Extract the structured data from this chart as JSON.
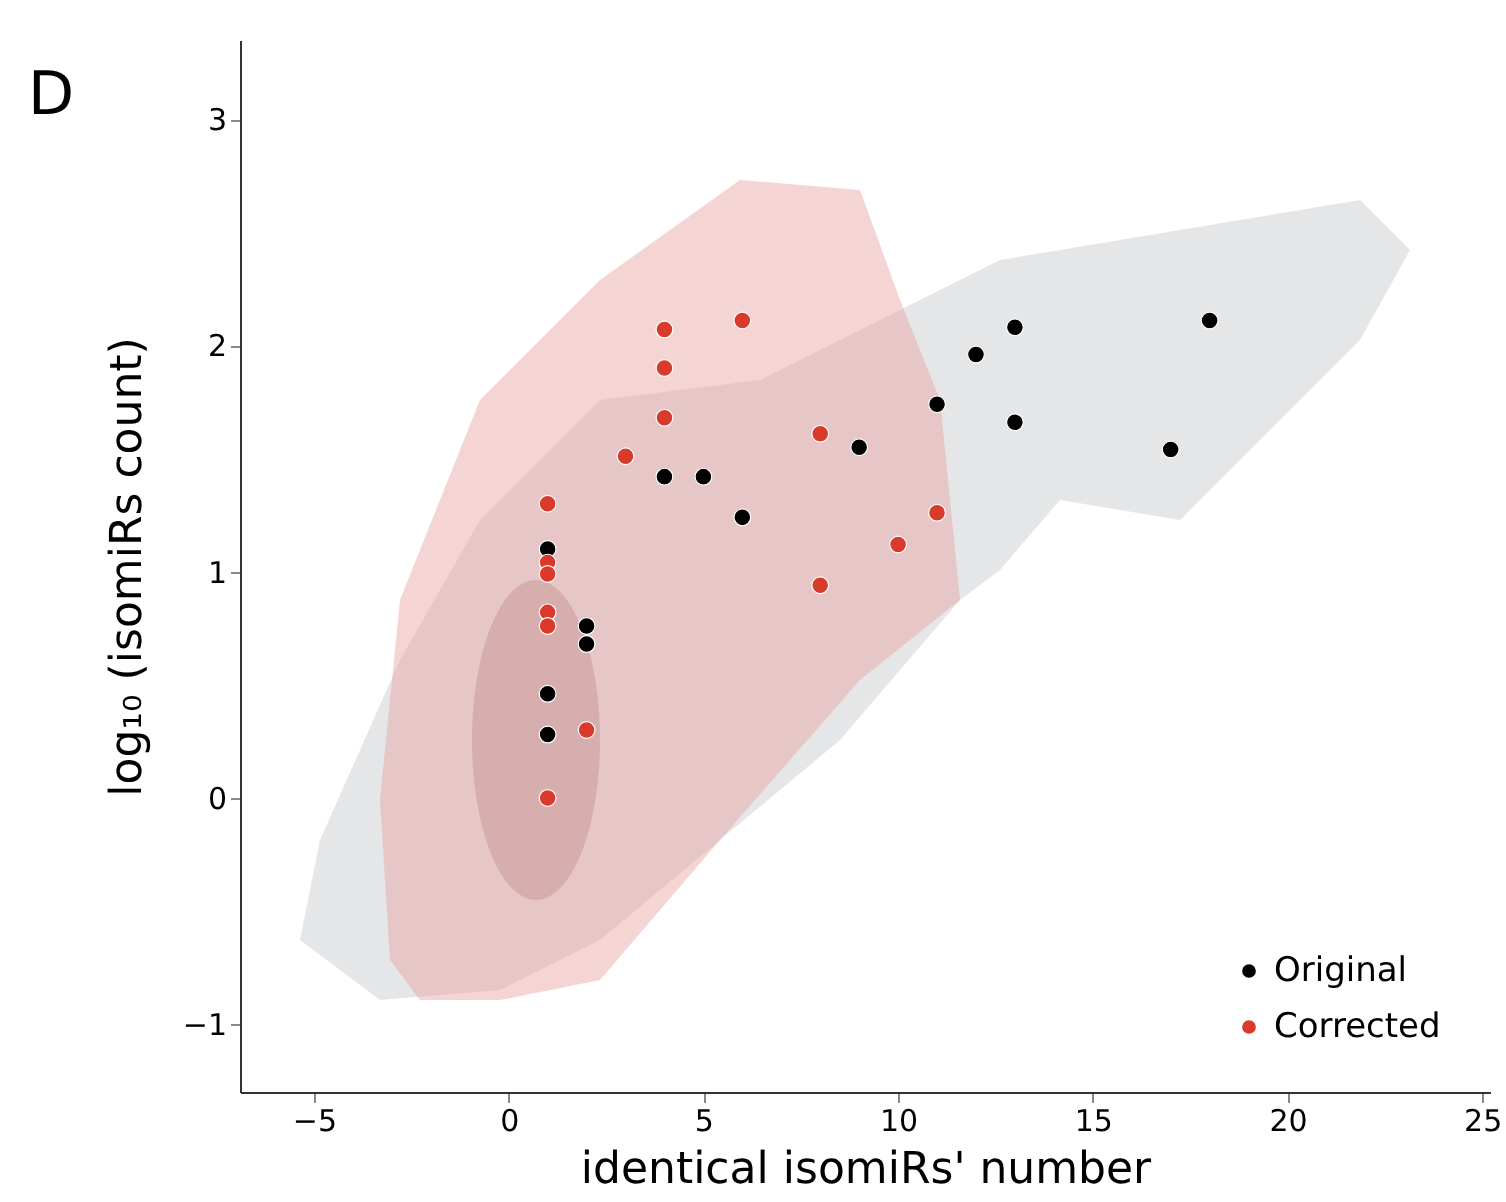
{
  "chart_data": {
    "type": "scatter",
    "xlabel": "identical isomiRs' number",
    "ylabel": "log₁₀ (isomiRs count)",
    "annotations": [
      "D"
    ],
    "xlim": [
      -6.9,
      25.2
    ],
    "xticks": [
      -5,
      0,
      5,
      10,
      15,
      20,
      25
    ],
    "ylim": [
      -1.3,
      3.35
    ],
    "yticks": [
      -1,
      0,
      1,
      2,
      3
    ],
    "grid": false,
    "legend": "bottom right",
    "marker": "circle",
    "series": [
      {
        "name": "Original",
        "color": "#000000",
        "x": [
          1,
          1,
          1,
          2,
          2,
          4,
          5,
          6,
          9,
          11,
          12,
          13,
          13,
          17,
          18
        ],
        "values": [
          1.1,
          0.46,
          0.28,
          0.76,
          0.68,
          1.42,
          1.42,
          1.24,
          1.55,
          1.74,
          1.96,
          2.08,
          1.66,
          1.54,
          2.11
        ]
      },
      {
        "name": "Corrected",
        "color": "#d93a2b",
        "x": [
          1,
          1,
          1,
          1,
          1,
          1,
          2,
          3,
          4,
          4,
          4,
          6,
          8,
          8,
          10,
          11
        ],
        "values": [
          1.3,
          1.04,
          0.99,
          0.82,
          0.76,
          0.0,
          0.3,
          1.51,
          2.07,
          1.9,
          1.68,
          2.11,
          1.61,
          0.94,
          1.12,
          1.26
        ]
      }
    ]
  }
}
